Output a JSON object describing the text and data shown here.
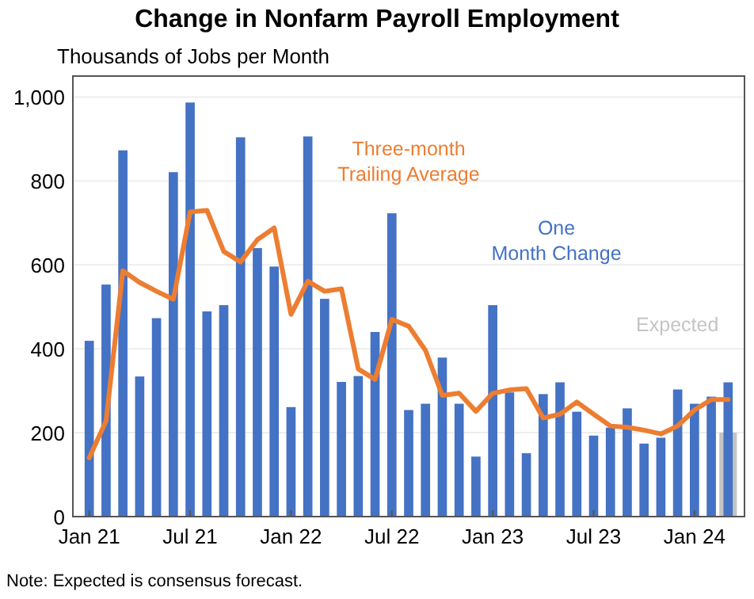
{
  "chart_data": {
    "type": "bar",
    "title": "Change in Nonfarm Payroll Employment",
    "ylabel": "Thousands of Jobs per Month",
    "categories": [
      "Jan 21",
      null,
      null,
      null,
      null,
      null,
      "Jul 21",
      null,
      null,
      null,
      null,
      null,
      "Jan 22",
      null,
      null,
      null,
      null,
      null,
      "Jul 22",
      null,
      null,
      null,
      null,
      null,
      "Jan 23",
      null,
      null,
      null,
      null,
      null,
      "Jul 23",
      null,
      null,
      null,
      null,
      null,
      "Jan 24",
      null,
      null
    ],
    "series": [
      {
        "name": "Expected",
        "color": "#c4c4c4",
        "values": [
          null,
          null,
          null,
          null,
          null,
          null,
          null,
          null,
          null,
          null,
          null,
          null,
          null,
          null,
          null,
          null,
          null,
          null,
          null,
          null,
          null,
          null,
          null,
          null,
          null,
          null,
          null,
          null,
          null,
          null,
          null,
          null,
          null,
          null,
          null,
          null,
          null,
          null,
          200
        ]
      },
      {
        "name": "One Month Change",
        "color": "#4472c4",
        "values": [
          419,
          553,
          873,
          334,
          473,
          821,
          987,
          489,
          504,
          904,
          640,
          596,
          261,
          906,
          519,
          321,
          335,
          440,
          723,
          254,
          269,
          379,
          269,
          143,
          504,
          296,
          151,
          292,
          320,
          250,
          193,
          212,
          258,
          174,
          188,
          303,
          269,
          286,
          320
        ]
      },
      {
        "name": "Three-month Trailing Average",
        "type": "line",
        "color": "#ed7d31",
        "values": [
          140,
          228,
          586,
          558,
          537,
          518,
          726,
          730,
          632,
          607,
          660,
          688,
          482,
          561,
          537,
          543,
          352,
          327,
          470,
          454,
          396,
          289,
          294,
          251,
          294,
          302,
          305,
          235,
          244,
          273,
          244,
          216,
          213,
          206,
          197,
          216,
          254,
          279,
          279
        ]
      }
    ],
    "ylim": [
      0,
      1050
    ],
    "yticks": [
      0,
      200,
      400,
      600,
      800,
      {
        "value": 1000,
        "label": "1,000"
      }
    ],
    "grid": "y",
    "line_style": "solid",
    "marker": "none",
    "annotations": [
      "Note: Expected is consensus forecast."
    ]
  }
}
